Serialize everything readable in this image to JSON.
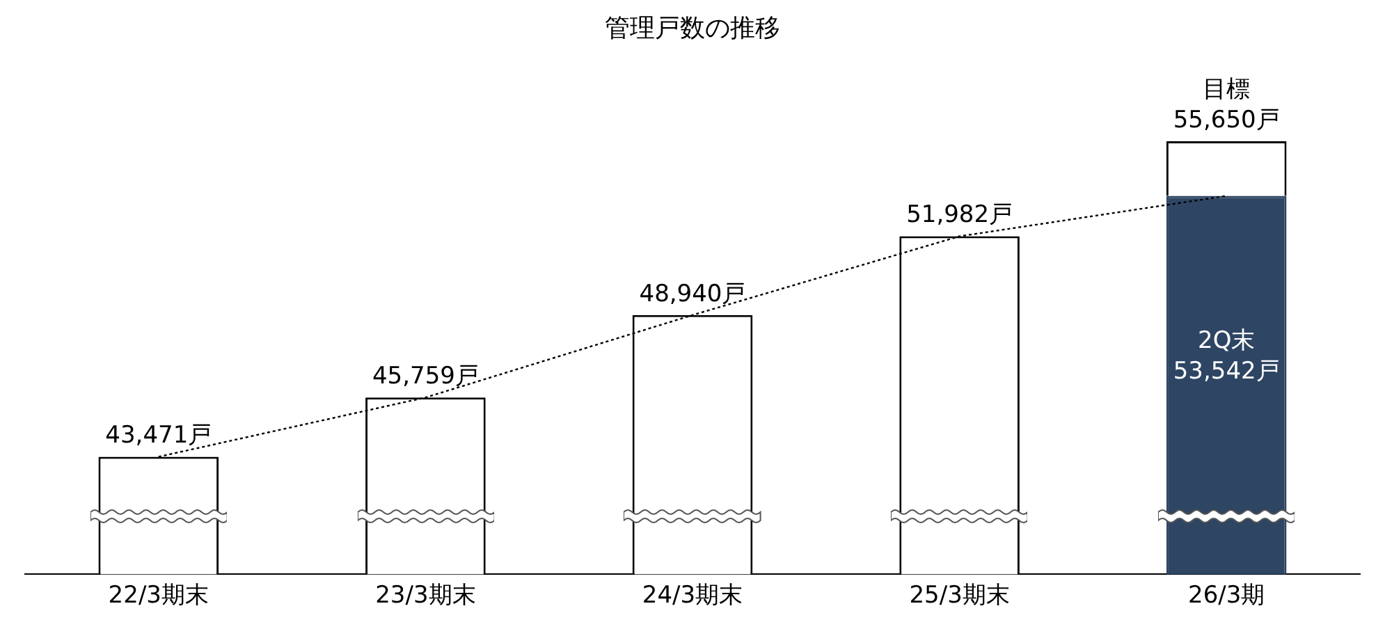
{
  "chart_data": {
    "type": "bar",
    "title": "管理戸数の推移",
    "categories": [
      "22/3期末",
      "23/3期末",
      "24/3期末",
      "25/3期末",
      "26/3期"
    ],
    "stacked": true,
    "legend": false,
    "grid": false,
    "series": [
      {
        "colors": [
          "#ffffff",
          "#ffffff",
          "#ffffff",
          "#ffffff",
          "#2e4563"
        ],
        "values": [
          43471,
          45759,
          48940,
          51982,
          53542
        ],
        "value_labels": [
          "43,471戸",
          "45,759戸",
          "48,940戸",
          "51,982戸",
          "2Q末\n53,542戸"
        ]
      },
      {
        "color": "#ffffff",
        "values": [
          null,
          null,
          null,
          null,
          2108
        ],
        "value_labels": [
          null,
          null,
          null,
          null,
          "目標\n55,650戸"
        ]
      },
      {
        "type": "line",
        "color": "#000000",
        "line_style": "dotted",
        "marker": "none",
        "values": [
          43471,
          45759,
          48940,
          51982,
          53542
        ]
      }
    ]
  }
}
